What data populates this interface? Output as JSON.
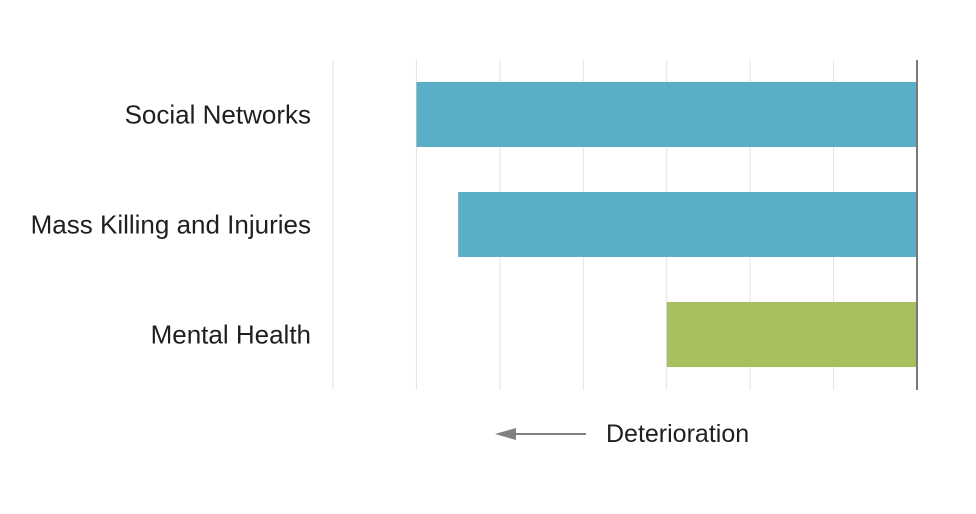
{
  "chart_data": {
    "type": "bar",
    "orientation": "horizontal",
    "categories": [
      "Social Networks",
      "Mass Killing and Injuries",
      "Mental Health"
    ],
    "values": [
      -6,
      -5.5,
      -3
    ],
    "bar_colors": [
      "#5aafc7",
      "#5aafc7",
      "#a8bf5d"
    ],
    "xlim": [
      -7,
      0
    ],
    "grid": true,
    "xlabel": "",
    "ylabel": "",
    "title": "",
    "annotations": [
      {
        "text": "Deterioration",
        "arrow": "left"
      }
    ]
  },
  "colors": {
    "gridline": "#e3e3e3",
    "axis": "#7a7a7a",
    "arrow": "#808080",
    "text": "#1f1f1f"
  }
}
